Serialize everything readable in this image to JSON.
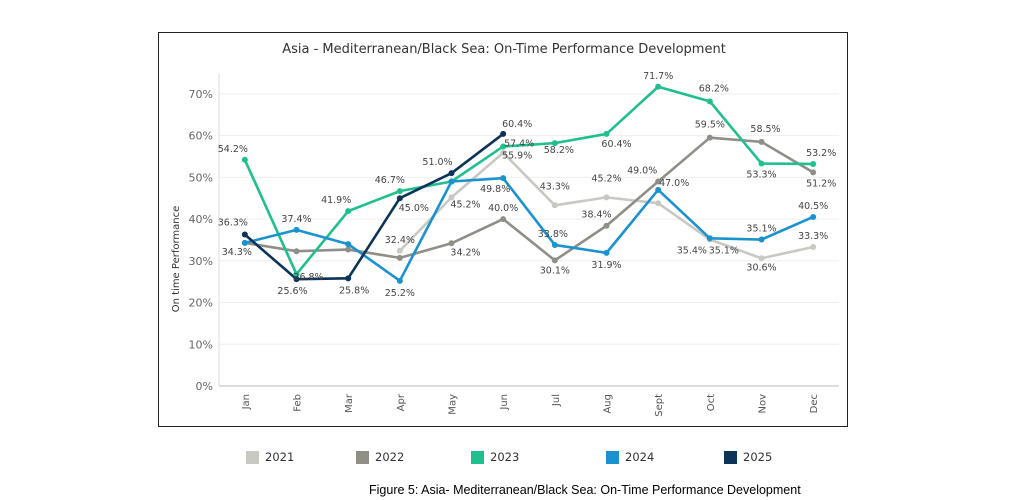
{
  "caption": "Figure 5: Asia- Mediterranean/Black Sea: On-Time Performance Development",
  "chart_data": {
    "type": "line",
    "title": "Asia - Mediterranean/Black Sea: On-Time Performance Development",
    "ylabel": "On time Performance",
    "xlabel": "",
    "ylim": [
      0,
      75
    ],
    "yticks": [
      0,
      10,
      20,
      30,
      40,
      50,
      60,
      70
    ],
    "ytick_labels": [
      "0%",
      "10%",
      "20%",
      "30%",
      "40%",
      "50%",
      "60%",
      "70%"
    ],
    "categories": [
      "Jan",
      "Feb",
      "Mar",
      "Apr",
      "May",
      "Jun",
      "Jul",
      "Aug",
      "Sept",
      "Oct",
      "Nov",
      "Dec"
    ],
    "grid": "horizontal",
    "legend_position": "bottom",
    "series": [
      {
        "name": "2021",
        "color": "#c9c9c4",
        "values": [
          null,
          null,
          null,
          32.4,
          45.2,
          55.9,
          43.3,
          45.2,
          43.8,
          35.1,
          30.6,
          33.3
        ],
        "labels": [
          null,
          null,
          null,
          "32.4%",
          "45.2%",
          "55.9%",
          "43.3%",
          "45.2%",
          null,
          "35.1%",
          "30.6%",
          "33.3%"
        ]
      },
      {
        "name": "2022",
        "color": "#8f8f88",
        "values": [
          34.3,
          32.3,
          32.7,
          30.7,
          34.2,
          40.0,
          30.1,
          38.4,
          49.0,
          59.5,
          58.5,
          51.2
        ],
        "labels": [
          "34.3%",
          null,
          null,
          null,
          "34.2%",
          "40.0%",
          "30.1%",
          "38.4%",
          "49.0%",
          "59.5%",
          "58.5%",
          "51.2%"
        ]
      },
      {
        "name": "2023",
        "color": "#1fbf8f",
        "values": [
          54.2,
          26.8,
          41.9,
          46.7,
          49.0,
          57.4,
          58.2,
          60.4,
          71.7,
          68.2,
          53.3,
          53.2
        ],
        "labels": [
          "54.2%",
          "26.8%",
          "41.9%",
          "46.7%",
          null,
          "57.4%",
          "58.2%",
          "60.4%",
          "71.7%",
          "68.2%",
          "53.3%",
          "53.2%"
        ]
      },
      {
        "name": "2024",
        "color": "#1a92d0",
        "values": [
          34.3,
          37.4,
          34.0,
          25.2,
          49.0,
          49.8,
          33.8,
          31.9,
          47.0,
          35.4,
          35.1,
          40.5
        ],
        "labels": [
          null,
          "37.4%",
          null,
          "25.2%",
          null,
          "49.8%",
          "33.8%",
          "31.9%",
          "47.0%",
          "35.4%",
          "35.1%",
          "40.5%"
        ]
      },
      {
        "name": "2025",
        "color": "#0c3358",
        "values": [
          36.3,
          25.6,
          25.8,
          45.0,
          51.0,
          60.4,
          null,
          null,
          null,
          null,
          null,
          null
        ],
        "labels": [
          "36.3%",
          "25.6%",
          "25.8%",
          "45.0%",
          "51.0%",
          "60.4%",
          null,
          null,
          null,
          null,
          null,
          null
        ]
      }
    ]
  }
}
